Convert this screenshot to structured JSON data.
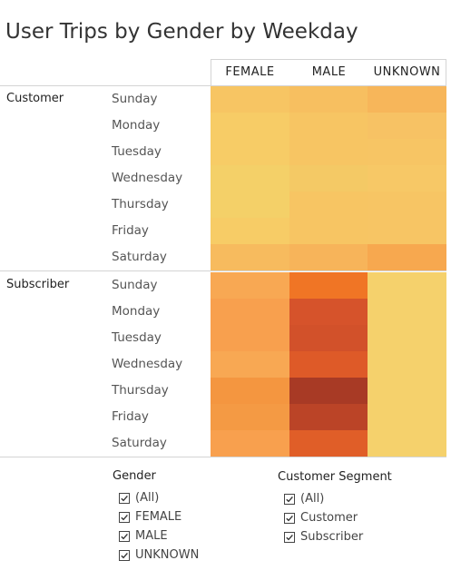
{
  "chart_data": {
    "type": "heatmap",
    "title": "User Trips by Gender by Weekday",
    "columns": [
      "FEMALE",
      "MALE",
      "UNKNOWN"
    ],
    "days": [
      "Sunday",
      "Monday",
      "Tuesday",
      "Wednesday",
      "Thursday",
      "Friday",
      "Saturday"
    ],
    "groups": [
      {
        "name": "Customer",
        "rows": [
          [
            "#F7C563",
            "#F7BF60",
            "#F7B65A"
          ],
          [
            "#F7CC66",
            "#F7C563",
            "#F7C264"
          ],
          [
            "#F7CC66",
            "#F7C563",
            "#F7C564"
          ],
          [
            "#F4D068",
            "#F4C965",
            "#F7C866"
          ],
          [
            "#F4D068",
            "#F7C563",
            "#F7C564"
          ],
          [
            "#F7CC66",
            "#F7C563",
            "#F7C564"
          ],
          [
            "#F7BB5E",
            "#F7B45A",
            "#F7A84F"
          ]
        ]
      },
      {
        "name": "Subscriber",
        "rows": [
          [
            "#F8A853",
            "#F07525",
            "#F5D16C"
          ],
          [
            "#F8A04E",
            "#D6532B",
            "#F5D16C"
          ],
          [
            "#F8A04E",
            "#D2512A",
            "#F5D16C"
          ],
          [
            "#F8A853",
            "#DE5A28",
            "#F5D16C"
          ],
          [
            "#F49640",
            "#A83A25",
            "#F5D16C"
          ],
          [
            "#F49A44",
            "#BB4427",
            "#F5D16C"
          ],
          [
            "#F8A04E",
            "#E05E28",
            "#F5D16C"
          ]
        ]
      }
    ]
  },
  "legend": {
    "gender": {
      "title": "Gender",
      "items": [
        "(All)",
        "FEMALE",
        "MALE",
        "UNKNOWN"
      ]
    },
    "segment": {
      "title": "Customer Segment",
      "items": [
        "(All)",
        "Customer",
        "Subscriber"
      ]
    }
  }
}
